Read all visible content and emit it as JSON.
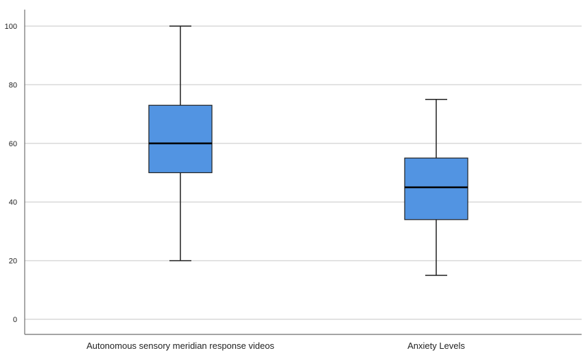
{
  "chart_data": {
    "type": "box",
    "title": "",
    "xlabel": "",
    "ylabel": "",
    "ylim": [
      0,
      100
    ],
    "yticks": [
      0,
      20,
      40,
      60,
      80,
      100
    ],
    "grid": true,
    "categories": [
      "Autonomous sensory meridian response videos",
      "Anxiety Levels"
    ],
    "boxes": [
      {
        "min": 20,
        "q1": 50,
        "median": 60,
        "q3": 73,
        "max": 100
      },
      {
        "min": 15,
        "q1": 34,
        "median": 45,
        "q3": 55,
        "max": 75
      }
    ],
    "colors": {
      "box_fill": "#5294e2",
      "box_stroke": "#1f1f1f",
      "grid": "#d9d9d9",
      "axis": "#6e6e6e",
      "text": "#222222"
    }
  }
}
